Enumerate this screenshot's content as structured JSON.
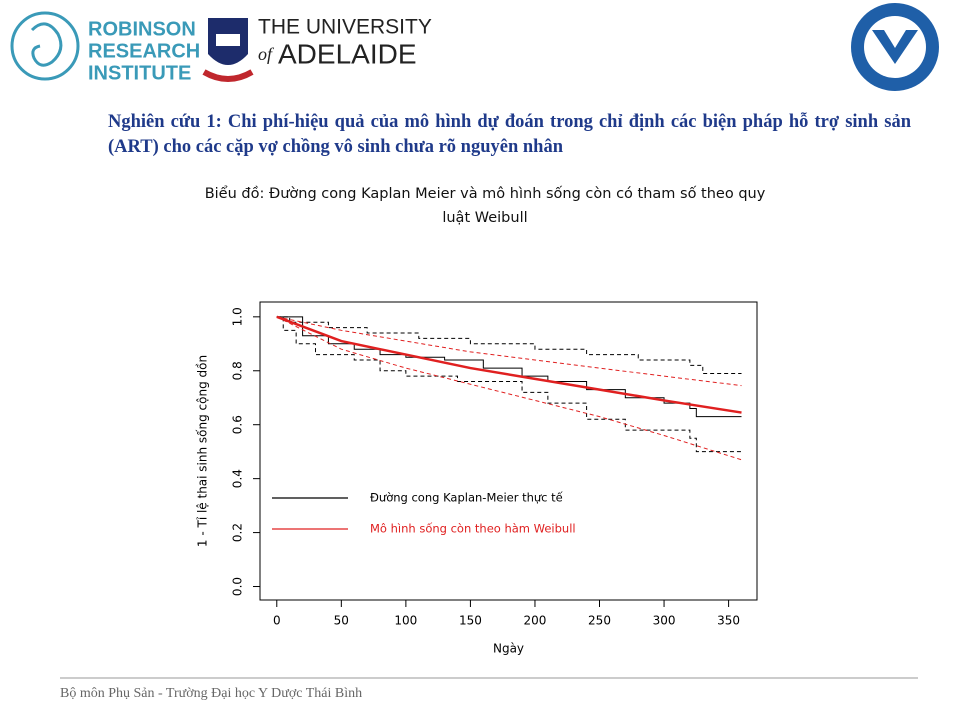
{
  "logos": {
    "robinson": [
      "ROBINSON",
      "RESEARCH",
      "INSTITUTE"
    ],
    "adelaide_top": "THE UNIVERSITY",
    "adelaide_of": "of",
    "adelaide_name": "ADELAIDE"
  },
  "heading": "Nghiên cứu 1: Chi phí-hiệu quả của mô hình dự đoán trong chỉ định các biện pháp hỗ trợ sinh sản (ART) cho các cặp vợ chồng vô sinh chưa rõ nguyên nhân",
  "footer": "Bộ môn Phụ Sản - Trường Đại học Y Dược Thái Bình",
  "chart_data": {
    "type": "line",
    "title": "Biểu đồ: Đường cong Kaplan Meier và mô hình sống còn có tham số theo quy luật Weibull",
    "x_label": "Ngày",
    "y_label": "1 - Tỉ lệ thai sinh sống cộng dồn",
    "xlim": [
      -13,
      372
    ],
    "ylim": [
      -0.05,
      1.055
    ],
    "xticks": [
      0,
      50,
      100,
      150,
      200,
      250,
      300,
      350
    ],
    "yticks": [
      {
        "value": 0,
        "label": "0.0"
      },
      {
        "value": 0.2,
        "label": "0.2"
      },
      {
        "value": 0.4,
        "label": "0.4"
      },
      {
        "value": 0.6,
        "label": "0.6"
      },
      {
        "value": 0.8,
        "label": "0.8"
      },
      {
        "value": 1,
        "label": "1.0"
      }
    ],
    "legend": "inside-left",
    "series": [
      {
        "name": "Đường cong Kaplan-Meier thực tế",
        "color": "#000000",
        "step": true,
        "dash": false,
        "width": 1,
        "x": [
          0,
          20,
          40,
          60,
          80,
          100,
          130,
          160,
          190,
          210,
          240,
          270,
          300,
          320,
          325,
          360
        ],
        "values": [
          1.0,
          0.93,
          0.9,
          0.88,
          0.86,
          0.85,
          0.84,
          0.81,
          0.78,
          0.76,
          0.73,
          0.7,
          0.68,
          0.66,
          0.63,
          0.63
        ]
      },
      {
        "color": "#000000",
        "step": true,
        "dash": true,
        "width": 1,
        "x": [
          0,
          10,
          40,
          70,
          110,
          150,
          200,
          240,
          280,
          320,
          330,
          360
        ],
        "values": [
          1.0,
          0.98,
          0.96,
          0.94,
          0.92,
          0.9,
          0.88,
          0.86,
          0.84,
          0.82,
          0.79,
          0.79
        ]
      },
      {
        "color": "#000000",
        "step": true,
        "dash": true,
        "width": 1,
        "x": [
          0,
          5,
          15,
          30,
          60,
          80,
          100,
          140,
          190,
          210,
          240,
          270,
          320,
          325,
          360
        ],
        "values": [
          1.0,
          0.95,
          0.9,
          0.86,
          0.84,
          0.8,
          0.78,
          0.76,
          0.72,
          0.68,
          0.62,
          0.58,
          0.55,
          0.5,
          0.5
        ]
      },
      {
        "name": "Mô hình sống còn theo hàm Weibull",
        "color": "#e02020",
        "step": false,
        "dash": false,
        "width": 2.5,
        "x": [
          0,
          50,
          100,
          150,
          200,
          250,
          300,
          360
        ],
        "values": [
          1.0,
          0.91,
          0.86,
          0.81,
          0.77,
          0.73,
          0.69,
          0.645
        ]
      },
      {
        "color": "#e02020",
        "step": false,
        "dash": true,
        "width": 1,
        "x": [
          0,
          50,
          100,
          150,
          200,
          250,
          300,
          360
        ],
        "values": [
          1.0,
          0.95,
          0.91,
          0.87,
          0.84,
          0.81,
          0.78,
          0.745
        ]
      },
      {
        "color": "#e02020",
        "step": false,
        "dash": true,
        "width": 1,
        "x": [
          0,
          50,
          100,
          150,
          200,
          250,
          300,
          360
        ],
        "values": [
          1.0,
          0.88,
          0.81,
          0.75,
          0.69,
          0.63,
          0.56,
          0.47
        ]
      }
    ]
  }
}
